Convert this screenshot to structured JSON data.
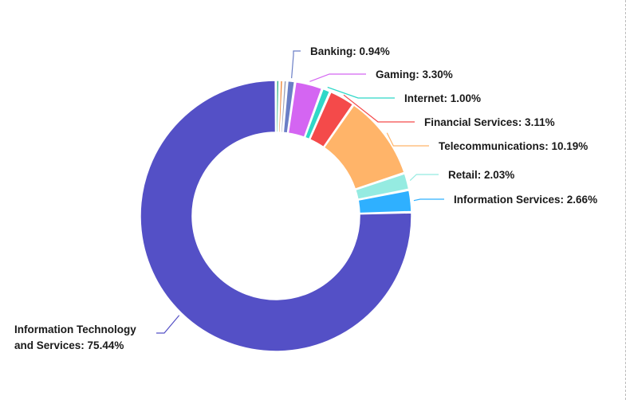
{
  "chart_data": {
    "type": "pie",
    "variant": "donut",
    "slices": [
      {
        "label": "Information Technology and Services",
        "label_lines": [
          "Information Technology",
          "and Services: 75.44%"
        ],
        "value": 75.44,
        "color": "#5450c6"
      },
      {
        "label": "Information Services",
        "label_lines": [
          "Information Services: 2.66%"
        ],
        "value": 2.66,
        "color": "#2fb0ff"
      },
      {
        "label": "Retail",
        "label_lines": [
          "Retail: 2.03%"
        ],
        "value": 2.03,
        "color": "#95ebe1"
      },
      {
        "label": "Telecommunications",
        "label_lines": [
          "Telecommunications: 10.19%"
        ],
        "value": 10.19,
        "color": "#ffb469"
      },
      {
        "label": "Financial Services",
        "label_lines": [
          "Financial Services: 3.11%"
        ],
        "value": 3.11,
        "color": "#f44a4a"
      },
      {
        "label": "Internet",
        "label_lines": [
          "Internet: 1.00%"
        ],
        "value": 1.0,
        "color": "#2fd8c8"
      },
      {
        "label": "Gaming",
        "label_lines": [
          "Gaming: 3.30%"
        ],
        "value": 3.3,
        "color": "#d465f2"
      },
      {
        "label": "Banking",
        "label_lines": [
          "Banking: 0.94%"
        ],
        "value": 0.94,
        "color": "#6a7ec6"
      },
      {
        "label": "",
        "label_lines": [],
        "value": 0.45,
        "color": "#9aa0b8"
      },
      {
        "label": "",
        "label_lines": [],
        "value": 0.44,
        "color": "#f08a3c"
      },
      {
        "label": "",
        "label_lines": [],
        "value": 0.44,
        "color": "#34b58a"
      }
    ]
  }
}
